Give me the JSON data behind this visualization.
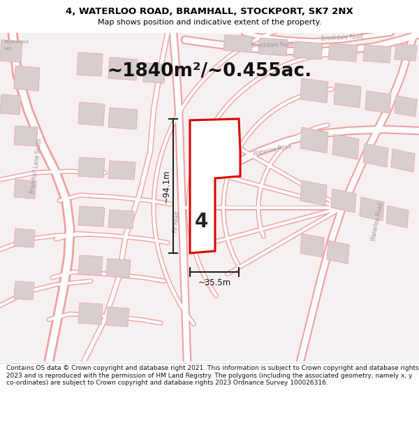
{
  "title_line1": "4, WATERLOO ROAD, BRAMHALL, STOCKPORT, SK7 2NX",
  "title_line2": "Map shows position and indicative extent of the property.",
  "area_text": "~1840m²/~0.455ac.",
  "number_label": "4",
  "dim_height": "~94.1m",
  "dim_width": "~35.5m",
  "footer_text": "Contains OS data © Crown copyright and database right 2021. This information is subject to Crown copyright and database rights 2023 and is reproduced with the permission of HM Land Registry. The polygons (including the associated geometry, namely x, y co-ordinates) are subject to Crown copyright and database rights 2023 Ordnance Survey 100026316.",
  "bg_color": "#ffffff",
  "map_bg": "#f7f0f0",
  "road_color": "#f0a0a0",
  "road_fill": "#ffffff",
  "building_color": "#d8cece",
  "building_edge": "#e8b0b0",
  "highlight_color": "#dd0000",
  "highlight_fill": "#ffffff",
  "dim_line_color": "#222222",
  "title_color": "#000000",
  "footer_color": "#111111",
  "label_color": "#999999",
  "title_fontsize": 9.5,
  "subtitle_fontsize": 8.0,
  "area_fontsize": 19,
  "dim_fontsize": 8.5,
  "footer_fontsize": 6.5,
  "label_fontsize": 5.5
}
